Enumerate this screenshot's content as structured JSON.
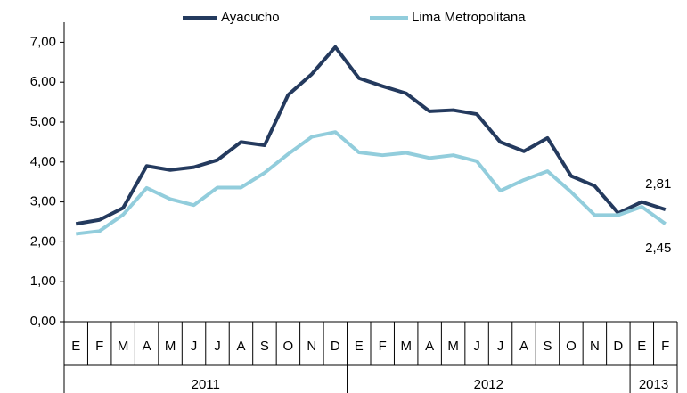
{
  "chart_data": {
    "type": "line",
    "categories": [
      "E",
      "F",
      "M",
      "A",
      "M",
      "J",
      "J",
      "A",
      "S",
      "O",
      "N",
      "D",
      "E",
      "F",
      "M",
      "A",
      "M",
      "J",
      "J",
      "A",
      "S",
      "O",
      "N",
      "D",
      "E",
      "F"
    ],
    "year_labels": [
      "2011",
      "2012",
      "2013"
    ],
    "series": [
      {
        "name": "Ayacucho",
        "color": "#243a5e",
        "values": [
          2.45,
          2.55,
          2.85,
          3.9,
          3.8,
          3.87,
          4.05,
          4.5,
          4.42,
          5.68,
          6.2,
          6.88,
          6.1,
          5.9,
          5.72,
          5.27,
          5.3,
          5.2,
          4.5,
          4.27,
          4.6,
          3.65,
          3.4,
          2.72,
          3.0,
          2.81
        ],
        "value_labels": [
          null,
          null,
          null,
          null,
          null,
          null,
          null,
          null,
          null,
          null,
          null,
          null,
          null,
          null,
          null,
          null,
          null,
          null,
          null,
          null,
          null,
          null,
          null,
          null,
          null,
          "2,81"
        ]
      },
      {
        "name": "Lima Metropolitana",
        "color": "#92cddc",
        "values": [
          2.2,
          2.27,
          2.68,
          3.35,
          3.07,
          2.92,
          3.36,
          3.36,
          3.73,
          4.2,
          4.63,
          4.75,
          4.24,
          4.17,
          4.23,
          4.1,
          4.17,
          4.02,
          3.28,
          3.55,
          3.77,
          3.25,
          2.67,
          2.67,
          2.88,
          2.45
        ],
        "value_labels": [
          null,
          null,
          null,
          null,
          null,
          null,
          null,
          null,
          null,
          null,
          null,
          null,
          null,
          null,
          null,
          null,
          null,
          null,
          null,
          null,
          null,
          null,
          null,
          null,
          null,
          "2,45"
        ]
      }
    ],
    "ylim": [
      0,
      7.5
    ],
    "yticks": [
      {
        "value": 0,
        "label": "0,00"
      },
      {
        "value": 1,
        "label": "1,00"
      },
      {
        "value": 2,
        "label": "2,00"
      },
      {
        "value": 3,
        "label": "3,00"
      },
      {
        "value": 4,
        "label": "4,00"
      },
      {
        "value": 5,
        "label": "5,00"
      },
      {
        "value": 6,
        "label": "6,00"
      },
      {
        "value": 7,
        "label": "7,00"
      }
    ],
    "legend": "top"
  }
}
